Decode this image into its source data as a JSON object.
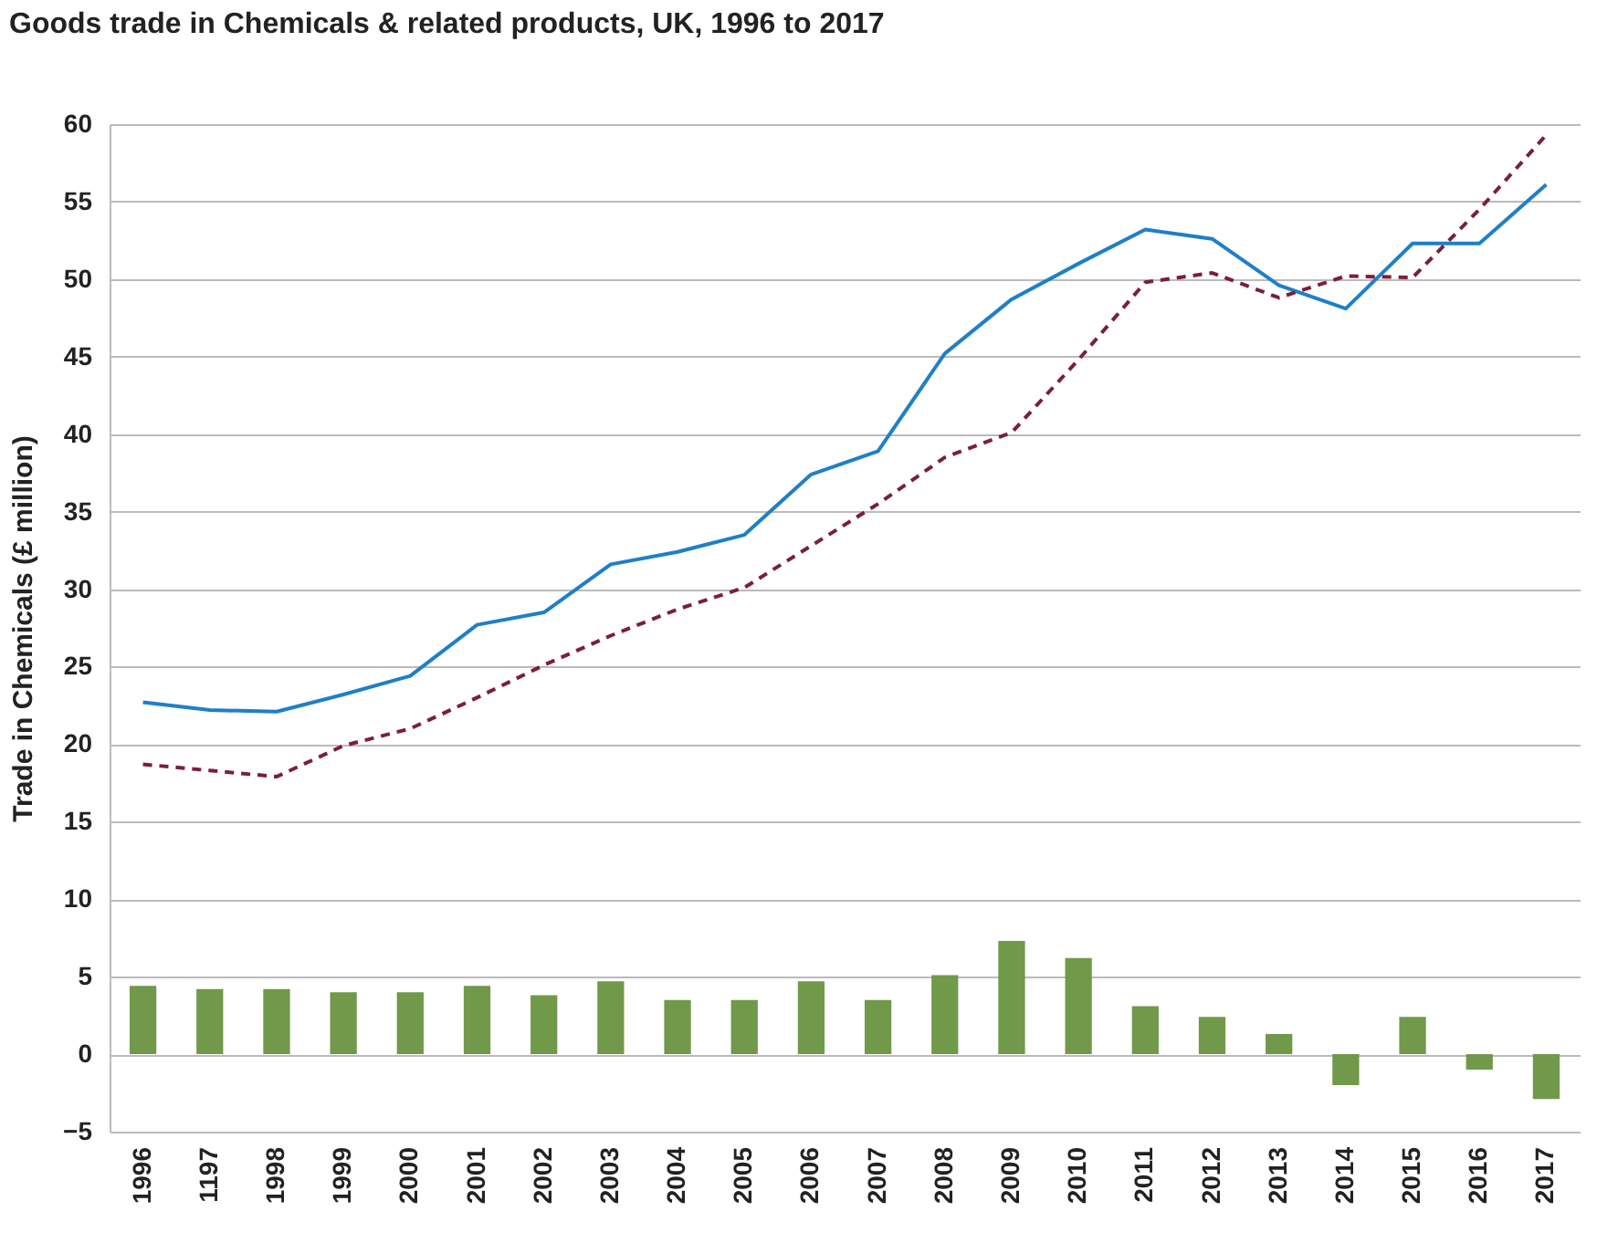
{
  "chart_data": {
    "type": "bar",
    "title": "Goods trade in Chemicals & related products, UK, 1996 to 2017",
    "ylabel": "Trade in Chemicals (£ million)",
    "categories": [
      "1996",
      "1197",
      "1998",
      "1999",
      "2000",
      "2001",
      "2002",
      "2003",
      "2004",
      "2005",
      "2006",
      "2007",
      "2008",
      "2009",
      "2010",
      "2011",
      "2012",
      "2013",
      "2014",
      "2015",
      "2016",
      "2017"
    ],
    "series": [
      {
        "color": "#70994a",
        "values": [
          4.4,
          4.2,
          4.2,
          4.0,
          4.0,
          4.4,
          3.8,
          4.7,
          3.5,
          3.5,
          4.7,
          3.5,
          5.1,
          7.3,
          6.2,
          3.1,
          2.4,
          1.3,
          -2.0,
          2.4,
          -1.0,
          -2.9
        ]
      },
      {
        "type": "line",
        "color": "#1f7fc8",
        "line_style": "solid",
        "values": [
          22.7,
          22.2,
          22.1,
          23.2,
          24.4,
          27.7,
          28.5,
          31.6,
          32.4,
          33.5,
          37.4,
          38.9,
          45.2,
          48.7,
          51.0,
          53.2,
          52.6,
          49.6,
          48.1,
          52.3,
          52.3,
          56.1
        ]
      },
      {
        "type": "line",
        "color": "#7b1e3c",
        "line_style": "dashed",
        "values": [
          18.7,
          18.3,
          17.9,
          19.9,
          21.0,
          23.0,
          25.1,
          27.0,
          28.7,
          30.1,
          32.8,
          35.5,
          38.5,
          40.1,
          44.8,
          49.8,
          50.4,
          48.8,
          50.2,
          50.1,
          54.5,
          59.3
        ]
      }
    ],
    "ylim": [
      -5,
      60
    ],
    "yticks": [
      -5,
      0,
      5,
      10,
      15,
      20,
      25,
      30,
      35,
      40,
      45,
      50,
      55,
      60
    ],
    "grid": "y"
  }
}
